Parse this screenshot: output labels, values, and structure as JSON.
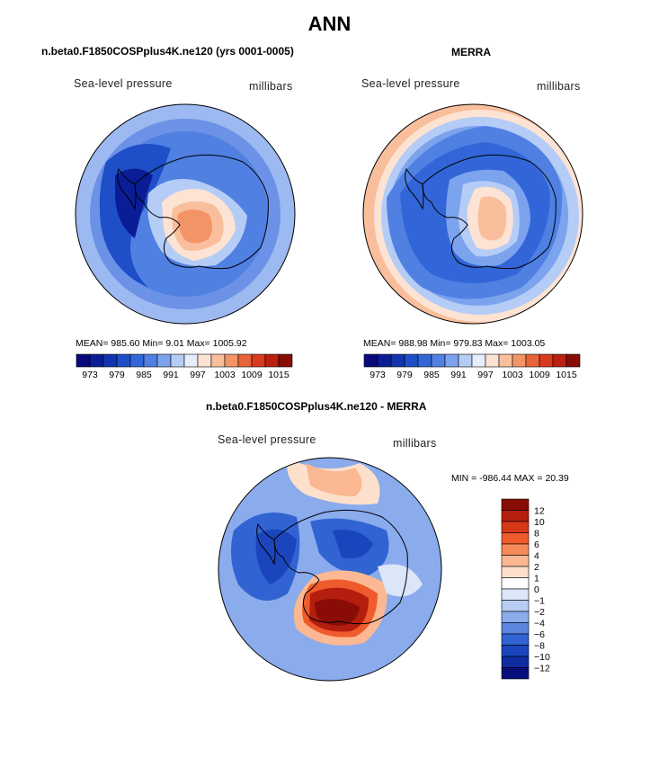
{
  "title": "ANN",
  "panels": [
    {
      "id": "model",
      "header": "n.beta0.F1850COSPplus4K.ne120 (yrs 0001-0005)",
      "variable_label": "Sea-level pressure",
      "units_label": "millibars",
      "stats_text": "MEAN= 985.60   Min=    9.01   Max= 1005.92"
    },
    {
      "id": "obs",
      "header": "MERRA",
      "variable_label": "Sea-level pressure",
      "units_label": "millibars",
      "stats_text": "MEAN= 988.98   Min= 979.83   Max= 1003.05"
    },
    {
      "id": "diff",
      "header": "n.beta0.F1850COSPplus4K.ne120 - MERRA",
      "variable_label": "Sea-level pressure",
      "units_label": "millibars",
      "stats_text": "MIN = -986.44  MAX =  20.39"
    }
  ],
  "chart_data": [
    {
      "type": "heatmap",
      "projection": "south-polar-stereographic",
      "title": "n.beta0.F1850COSPplus4K.ne120 (yrs 0001-0005)",
      "variable": "Sea-level pressure",
      "units": "millibars",
      "mean": 985.6,
      "min": 9.01,
      "max": 1005.92,
      "contour_levels": [
        973,
        976,
        979,
        982,
        985,
        988,
        991,
        994,
        997,
        1000,
        1003,
        1006,
        1009,
        1012,
        1015
      ],
      "colorbar_ticks": [
        "973",
        "979",
        "985",
        "991",
        "997",
        "1003",
        "1009",
        "1015"
      ],
      "colorbar_colors": [
        "#08087a",
        "#0b1d96",
        "#1234b0",
        "#1e4fc8",
        "#3266d8",
        "#4f80e2",
        "#7ba3ee",
        "#b5ccf6",
        "#e6eefb",
        "#fde3d3",
        "#f9bf9d",
        "#f39466",
        "#e7643a",
        "#d83a1c",
        "#ba1f10",
        "#8a0c06"
      ]
    },
    {
      "type": "heatmap",
      "projection": "south-polar-stereographic",
      "title": "MERRA",
      "variable": "Sea-level pressure",
      "units": "millibars",
      "mean": 988.98,
      "min": 979.83,
      "max": 1003.05,
      "contour_levels": [
        973,
        976,
        979,
        982,
        985,
        988,
        991,
        994,
        997,
        1000,
        1003,
        1006,
        1009,
        1012,
        1015
      ],
      "colorbar_ticks": [
        "973",
        "979",
        "985",
        "991",
        "997",
        "1003",
        "1009",
        "1015"
      ],
      "colorbar_colors": [
        "#08087a",
        "#0b1d96",
        "#1234b0",
        "#1e4fc8",
        "#3266d8",
        "#4f80e2",
        "#7ba3ee",
        "#b5ccf6",
        "#e6eefb",
        "#fde3d3",
        "#f9bf9d",
        "#f39466",
        "#e7643a",
        "#d83a1c",
        "#ba1f10",
        "#8a0c06"
      ]
    },
    {
      "type": "heatmap",
      "projection": "south-polar-stereographic",
      "title": "n.beta0.F1850COSPplus4K.ne120 - MERRA",
      "variable": "Sea-level pressure",
      "units": "millibars",
      "min": -986.44,
      "max": 20.39,
      "contour_levels": [
        -12,
        -10,
        -8,
        -6,
        -4,
        -2,
        -1,
        0,
        1,
        2,
        4,
        6,
        8,
        10,
        12
      ],
      "colorbar_ticks": [
        "12",
        "10",
        "8",
        "6",
        "4",
        "2",
        "1",
        "0",
        "−1",
        "−2",
        "−4",
        "−6",
        "−8",
        "−10",
        "−12"
      ],
      "colorbar_colors": [
        "#8a0c06",
        "#b41e0e",
        "#d63818",
        "#ef5b2c",
        "#f78a5a",
        "#fbb892",
        "#fde0cb",
        "#ffffff",
        "#dbe6f8",
        "#b7cdf3",
        "#8aabec",
        "#5c86e0",
        "#3163d2",
        "#1b45bd",
        "#0f2ca0",
        "#080f7c"
      ]
    }
  ]
}
